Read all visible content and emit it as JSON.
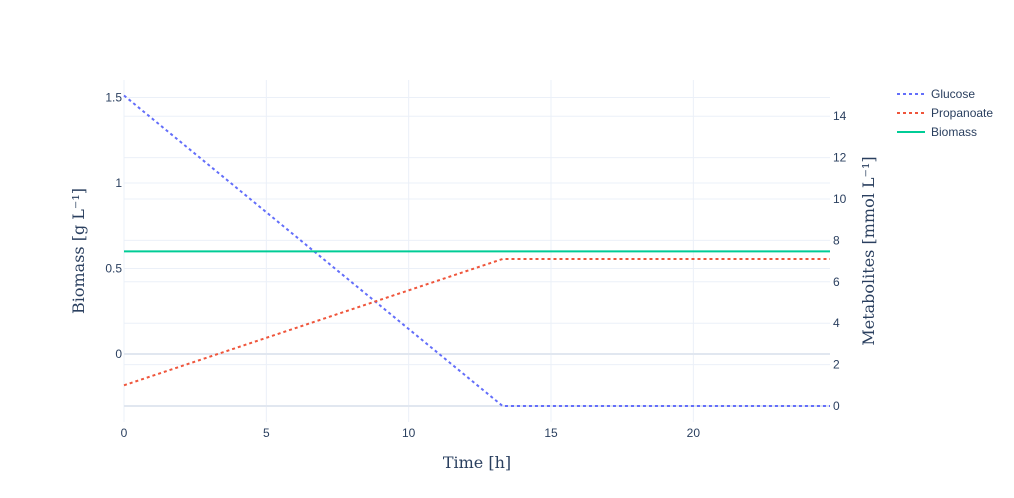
{
  "chart_data": {
    "type": "line",
    "xlabel": "Time [h]",
    "ylabel_left": "Biomass [g L⁻¹]",
    "ylabel_right": "Metabolites [mmol L⁻¹]",
    "xlim": [
      0,
      24.8
    ],
    "ylim_left": [
      -0.3,
      1.6
    ],
    "ylim_right": [
      0,
      15
    ],
    "x_ticks": [
      0,
      5,
      10,
      15,
      20
    ],
    "y_left_ticks": [
      0,
      0.5,
      1,
      1.5
    ],
    "y_right_ticks": [
      0,
      2,
      4,
      6,
      8,
      10,
      12,
      14
    ],
    "grid": true,
    "legend_position": "top-right",
    "series": [
      {
        "name": "Glucose",
        "axis": "right",
        "style": "dotted",
        "color": "#636efa",
        "x": [
          0,
          13.3,
          24.8
        ],
        "y": [
          15.0,
          0.0,
          0.0
        ]
      },
      {
        "name": "Propanoate",
        "axis": "right",
        "style": "dotted",
        "color": "#ef553b",
        "x": [
          0,
          13.3,
          24.8
        ],
        "y": [
          1.0,
          7.1,
          7.1
        ]
      },
      {
        "name": "Biomass",
        "axis": "left",
        "style": "solid",
        "color": "#00cc96",
        "x": [
          0,
          24.8
        ],
        "y": [
          0.6,
          0.6
        ]
      }
    ]
  }
}
